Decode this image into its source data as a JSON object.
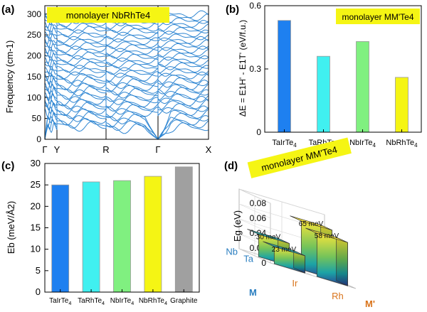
{
  "panels": {
    "a": {
      "label": "(a)"
    },
    "b": {
      "label": "(b)"
    },
    "c": {
      "label": "(c)"
    },
    "d": {
      "label": "(d)"
    }
  },
  "colors": {
    "phonon": "#2f86d2",
    "TaIrTe4": "#1e80f0",
    "TaRhTe4": "#40f0f0",
    "NbIrTe4": "#80f080",
    "NbRhTe4": "#f5f514",
    "Graphite": "#a0a0a0",
    "label_box": "#f5f514",
    "M_label": "#2a7ec0",
    "Mprime_label": "#d9731a"
  },
  "chart_data": [
    {
      "panel": "a",
      "type": "line",
      "title": "monolayer NbRhTe4",
      "ylabel": "Frequency (cm-1)",
      "ylim": [
        0,
        320
      ],
      "yticks": [
        "0",
        "50",
        "100",
        "150",
        "200",
        "250",
        "300"
      ],
      "xticks": [
        "Γ",
        "Y",
        "R",
        "Γ",
        "X"
      ],
      "grid": false,
      "series_count": 36
    },
    {
      "panel": "b",
      "type": "bar",
      "title": "monolayer MM'Te4",
      "ylabel": "ΔE = E1H' - E1T' (eV/f.u.)",
      "categories": [
        "TaIrTe4",
        "TaRhTe4",
        "NbIrTe4",
        "NbRhTe4"
      ],
      "values": [
        0.53,
        0.36,
        0.43,
        0.26
      ],
      "ylim": [
        0,
        0.6
      ],
      "yticks": [
        "0",
        "0.3",
        "0.6"
      ],
      "grid": false
    },
    {
      "panel": "c",
      "type": "bar",
      "ylabel": "Eb (meV/Å2)",
      "categories": [
        "TaIrTe4",
        "TaRhTe4",
        "NbIrTe4",
        "NbRhTe4",
        "Graphite"
      ],
      "values": [
        25.0,
        25.7,
        26.0,
        27.0,
        29.2
      ],
      "ylim": [
        0,
        30
      ],
      "yticks": [
        "0",
        "5",
        "10",
        "15",
        "20",
        "25",
        "30"
      ],
      "grid": false
    },
    {
      "panel": "d",
      "type": "bar",
      "title": "monolayer MM'Te4",
      "zlabel": "Eg (eV)",
      "zticks": [
        "0",
        "0.02",
        "0.04",
        "0.06",
        "0.08"
      ],
      "zlim": [
        0,
        0.08
      ],
      "M_label": "M",
      "Mprime_label": "M'",
      "M_values": [
        "Nb",
        "Ta"
      ],
      "Mprime_values": [
        "Ir",
        "Rh"
      ],
      "bars": [
        {
          "M": "Nb",
          "Mprime": "Ir",
          "value": 0.03,
          "label": "30 meV"
        },
        {
          "M": "Nb",
          "Mprime": "Rh",
          "value": 0.065,
          "label": "65 meV"
        },
        {
          "M": "Ta",
          "Mprime": "Ir",
          "value": 0.023,
          "label": "23 meV"
        },
        {
          "M": "Ta",
          "Mprime": "Rh",
          "value": 0.058,
          "label": "58 meV"
        }
      ]
    }
  ]
}
